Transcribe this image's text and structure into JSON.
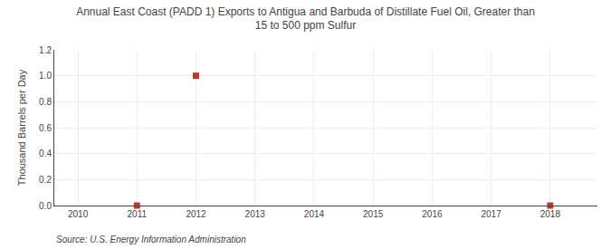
{
  "chart_data": {
    "type": "scatter",
    "title": "Annual East Coast (PADD 1) Exports to Antigua and Barbuda of Distillate Fuel Oil, Greater than\n15 to 500 ppm Sulfur",
    "y_label": "Thousand Barrels per Day",
    "source": "Source: U.S. Energy Information Administration",
    "x": [
      2011,
      2012,
      2018
    ],
    "values": [
      0.0,
      1.0,
      0.0
    ],
    "color": "#c0392b",
    "marker": "square",
    "xlim": [
      2009.6,
      2018.8
    ],
    "xticks": [
      2010,
      2011,
      2012,
      2013,
      2014,
      2015,
      2016,
      2017,
      2018
    ],
    "ylim": [
      0.0,
      1.2
    ],
    "yticks": [
      {
        "value": 0.0,
        "label": "0.0"
      },
      0.2,
      0.4,
      0.6,
      0.8,
      {
        "value": 1.0,
        "label": "1.0"
      },
      1.2
    ],
    "grid": true
  }
}
